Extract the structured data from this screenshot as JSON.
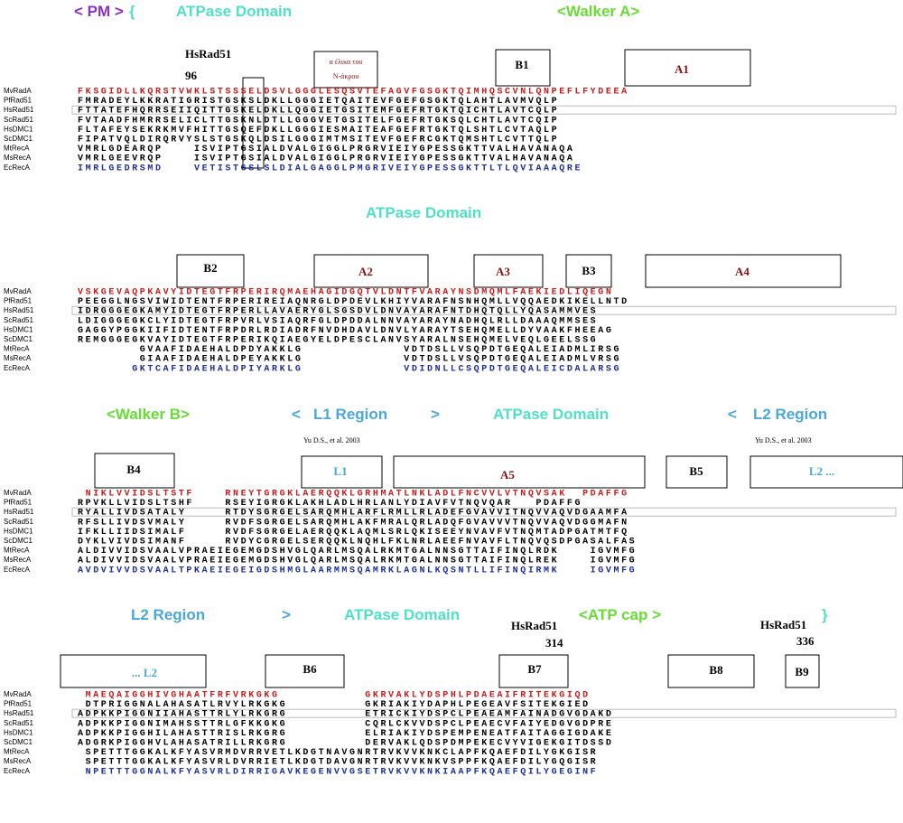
{
  "names": [
    "MvRadA",
    "PfRad51",
    "HsRad51",
    "ScRad51",
    "HsDMC1",
    "ScDMC1",
    "MtRecA",
    "MsRecA",
    "EcRecA"
  ],
  "blocks": [
    {
      "headers": [
        "< PM >",
        "{",
        "ATPase Domain",
        "<Walker A>"
      ],
      "labels": [
        "HsRad51",
        "96",
        "α έλικα του",
        "Ν-άκρου",
        "B1",
        "A1"
      ],
      "rows": [
        "FKSGIDLLKQRSTVWKLSTSSSELDSVLGGGLESQSVTEFAGVFGSGKTQIMHQSCVNLQNPEFLFYDEEA",
        "FMRADEYLKKRATIGRISTGSKSLDKLLGGGIETQAITEVFGEFGSGKTQLAHTLAVMVQLP",
        "FTTATEFHQRRSEIIQITTGSKELDKLLQGGIETGSITEMFGEFRTGKTQICHTLAVTCQLP",
        "FVTAADFHMRRSELICLTTGSKNLDTLLGGGVETGSITELFGEFRTGKSQLCHTLAVTCQIP",
        "FLTAFEYSEKRKMVFHITTGSQEFDKLLGGGIESMAITEAFGEFRTGKTQLSHTLCVTAQLP",
        "FIPATVQLDIRQRVYSLSTGSKQLDSILGGGIMTMSITEVFGEFRCGKTQMSHTLCVTTQLP",
        "VMRLGDEARQP    ISVIPTGSIALDVALGIGGLPRGRVIEIYGPESSGKTTVALHAVANAQA",
        "VMRLGEEVRQP    ISVIPTGSIALDVALGIGGLPRGRVIEIYGPESSGKTTVALHAVANAQA",
        "IMRLGEDRSMD    VETISTGSLSLDIALGAGGLPMGRIVEIYGPESSGKTTLTLQVIAAAQRE"
      ]
    },
    {
      "headers": [
        "ATPase Domain"
      ],
      "labels": [
        "B2",
        "A2",
        "A3",
        "B3",
        "A4"
      ],
      "rows": [
        "VSKGEVAQPKAVYIDTEGTFRPERIRQMAEHAGIDGQTVLDNTFVARAYNSDMQMLFAEKIEDLIQEGN",
        "PEEGGLNGSVIWIDTENTFRPERIREIAQNRGLDPDEVLKHIYVARAFNSNHQMLLVQQAEDKIKELLNTD",
        "IDRGGGEGKAMYIDTEGTFRPERLLAVAERYGLSGSDVLDNVAYARAFNTDHQTQLLYQASAMMVES",
        "LDIGGGEGKCLYIDTEGTFRPVRLVSIAQRFGLDPDDALNNVAYARAYNADHQLRLLDAAAQMMSES",
        "GAGGYPGGKIIFIDTENTFRPDRLRDIADRFNVDHDAVLDNVLYARAYTSEHQMELLDYVAAKFHEEAG",
        "REMGGGEGKVAYIDTEGTFRPERIKQIAEGYELDPESCLANVSYARALNSEHQMELVEQLGEELSSG",
        "        GVAAFIDAEHALDPDYAKKLG             VDTDSLLVSQPDTGEQALEIADMLIRSG",
        "        GIAAFIDAEHALDPEYAKKLG             VDTDSLLVSQPDTGEQALEIADMLVRSG",
        "       GKTCAFIDAEHALDPIYARKLG             VDIDNLLCSQPDTGEQALEICDALARSG"
      ]
    },
    {
      "headers": [
        "<Walker B>",
        "<",
        "L1 Region",
        ">",
        "ATPase Domain",
        "<",
        "L2 Region"
      ],
      "labels": [
        "Yu D.S., et al. 2003",
        "Yu D.S., et al. 2003",
        "B4",
        "L1",
        "A5",
        "B5",
        "L2 ..."
      ],
      "rows": [
        " NIKLVVIDSLTSTF    RNEYTGRGKLAERQQKLGRHMATLNKLADLFNCVVLVTNQVSAK  PDAFFG",
        "RPVKLLVIDSLTSHF    RSEYIGRGKLAKHLADLHRLANLYDIAVFVTNQVQAR   PDAFFG",
        "RYALLIVDSATALY     RTDYSGRGELSARQMHLARFLRMLLRLADEFGVAVVITNQVVAQVDGAAMFA",
        "RFSLLIVDSVMALY     RVDFSGRGELSARQMHLAKFMRALQRLADQFGVAVVVTNQVVAQVDGGMAFN",
        "IFKLLIIDSIMALF     RVDFSGRGELAERQQKLAQMLSRLQKISEEYNVAVFVTNQMTADPGATMTFQ",
        "DYKLVIVDSIMANF     RVDYCGRGELSERQQKLNQHLFKLNRLAEEFNVAVFLTNQVQSDPGASALFAS",
        "ALDIVVIDSVAALVPRAEIEGEMGDSHVGLQARLMSQALRKMTGALNNSGTTAIFINQLRDK    IGVMFG",
        "ALDIVVIDSVAALVPRAEIEGEMGDSHVGLQARLMSQALRKMTGALNNSGTTAIFINQLREK    IGVMFG",
        "AVDVIVVDSVAALTPKAEIEGEIGDSHMGLAARMMSQAMRKLAGNLKQSNTLLIFINQIRMK    IGVMFG"
      ]
    },
    {
      "headers": [
        "L2 Region",
        ">",
        "ATPase Domain",
        "<ATP cap >",
        "}"
      ],
      "labels": [
        "HsRad51",
        "314",
        "HsRad51",
        "336",
        "... L2",
        "B6",
        "B7",
        "B8",
        "B9"
      ],
      "rows": [
        " MAEQAIGGHIVGHAATFRFVRKGKG           GKRVAKLYDSPHLPDAEAIFRITEKGIQD",
        " DTPRIGGNALAHASATLRVYLRKGKG          GKRIAKIYDAPHLPEGEAVFSITEKGIED",
        "ADPKKPIGGNIIAHASTTRLYLRKGRG          ETRICKIYDSPCLPEAEAMFAINADGVGDAKD",
        "ADPKKPIGGNIMAHSSTTRLGFKKGKG          CQRLCKVVDSPCLPEAECVFAIYEDGVGDPRE",
        "ADPKKPIGGHILAHASTTRISLRKGRG          ELRIAKIYDSPEMPENEATFAITAGGIGDAKE",
        "ADGRKPIGGHVLAHASATRILLRKGRG          DERVAKLQDSPDMPEKECVYVIGEKGITDSSD",
        " SPETTTGGKALKFYASVRMDVRRVETLKDGTNAVGNRTRVKVVKNKCLAPFKQAEFDILYGKGISR",
        " SPETTTGGKALKFYASVRLDVRRIETLKDGTDAVGNRTRVKVVKNKVSPPFKQAEFDILYGQGISR",
        " NPETTTGGNALKFYASVRLDIRRIGAVKEGENVVGSETRVKVVKNKIAAPFKQAEFQILYGEGINF"
      ]
    }
  ]
}
